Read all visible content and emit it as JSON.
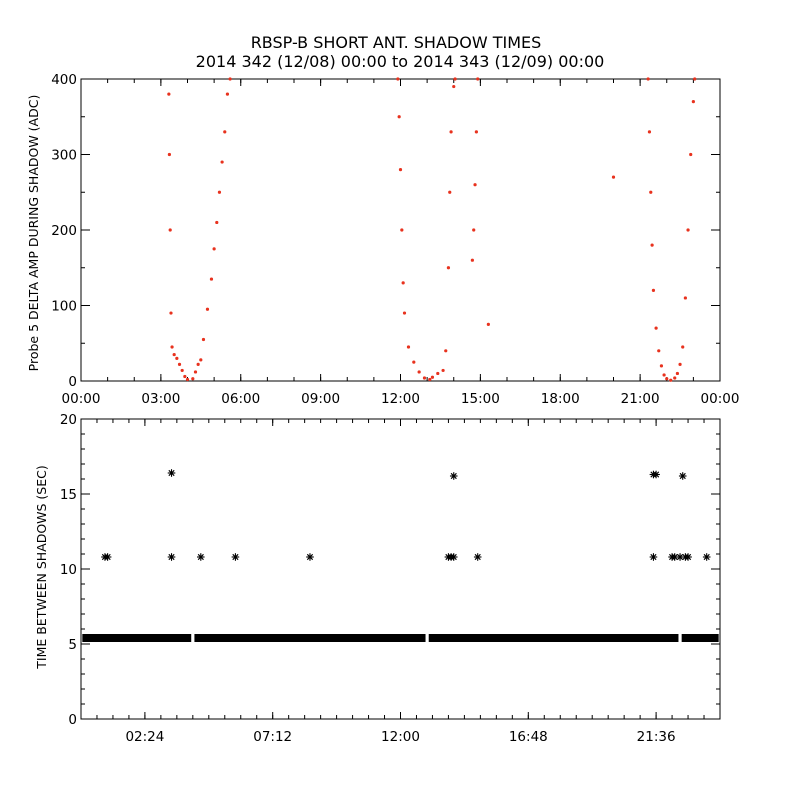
{
  "header": {
    "title": "RBSP-B SHORT ANT. SHADOW TIMES",
    "subtitle": "2014 342 (12/08) 00:00 to 2014 343 (12/09) 00:00"
  },
  "chart_data": [
    {
      "type": "scatter",
      "title": "RBSP-B SHORT ANT. SHADOW TIMES",
      "subtitle": "2014 342 (12/08) 00:00 to 2014 343 (12/09) 00:00",
      "xlabel": "",
      "ylabel": "Probe 5 DELTA AMP DURING SHADOW (ADC)",
      "x_unit": "hours",
      "xlim": [
        0,
        24
      ],
      "ylim": [
        0,
        400
      ],
      "x_ticks": [
        0,
        3,
        6,
        9,
        12,
        15,
        18,
        21,
        24
      ],
      "x_tick_labels": [
        "00:00",
        "03:00",
        "06:00",
        "09:00",
        "12:00",
        "15:00",
        "18:00",
        "21:00",
        "00:00"
      ],
      "y_ticks": [
        0,
        100,
        200,
        300,
        400
      ],
      "y_tick_labels": [
        "0",
        "100",
        "200",
        "300",
        "400"
      ],
      "grid": false,
      "marker_color": "#e8321e",
      "series": [
        {
          "x": [
            3.3,
            3.32,
            3.35,
            3.38,
            3.42,
            3.5,
            3.6,
            3.7,
            3.8,
            3.9,
            4.0,
            4.2,
            4.3,
            4.4,
            4.5,
            4.6,
            4.75,
            4.9,
            5.0,
            5.1,
            5.2,
            5.3,
            5.4,
            5.5,
            5.6,
            11.9,
            11.95,
            12.0,
            12.05,
            12.1,
            12.15,
            12.3,
            12.5,
            12.7,
            12.9,
            13.1,
            13.2,
            13.4,
            13.6,
            13.7,
            13.8,
            13.85,
            13.9,
            14.0,
            14.05,
            14.7,
            14.75,
            14.8,
            14.85,
            14.9,
            15.3,
            20.0,
            21.3,
            21.35,
            21.4,
            21.45,
            21.5,
            21.6,
            21.7,
            21.8,
            21.9,
            22.0,
            22.15,
            22.3,
            22.4,
            22.5,
            22.6,
            22.7,
            22.8,
            22.9,
            23.0,
            23.05
          ],
          "y": [
            380,
            300,
            200,
            90,
            45,
            35,
            30,
            22,
            14,
            6,
            2,
            3,
            12,
            22,
            28,
            55,
            95,
            135,
            175,
            210,
            250,
            290,
            330,
            380,
            400,
            400,
            350,
            280,
            200,
            130,
            90,
            45,
            25,
            12,
            4,
            2,
            5,
            10,
            14,
            40,
            150,
            250,
            330,
            390,
            400,
            160,
            200,
            260,
            330,
            400,
            75,
            270,
            400,
            330,
            250,
            180,
            120,
            70,
            40,
            20,
            8,
            3,
            1,
            4,
            10,
            22,
            45,
            110,
            200,
            300,
            370,
            400
          ]
        }
      ]
    },
    {
      "type": "scatter",
      "xlabel": "",
      "ylabel": "TIME BETWEEN SHADOWS (SEC)",
      "x_unit": "hours",
      "xlim": [
        0,
        24
      ],
      "ylim": [
        0,
        20
      ],
      "x_ticks": [
        2.4,
        7.2,
        12.0,
        16.8,
        21.6
      ],
      "x_tick_labels": [
        "02:24",
        "07:12",
        "12:00",
        "16:48",
        "21:36"
      ],
      "y_ticks": [
        0,
        5,
        10,
        15,
        20
      ],
      "y_tick_labels": [
        "0",
        "5",
        "10",
        "15",
        "20"
      ],
      "grid": false,
      "marker": "asterisk",
      "marker_color": "#000000",
      "baseline_value": 5.4,
      "baseline_range": [
        0.05,
        23.95
      ],
      "baseline_gaps": [
        4.2,
        13.0,
        22.5
      ],
      "series": [
        {
          "x": [
            0.9,
            1.0,
            3.4,
            3.4,
            4.5,
            5.8,
            8.6,
            13.8,
            13.9,
            14.0,
            14.0,
            14.9,
            21.5,
            21.5,
            21.6,
            22.2,
            22.3,
            22.5,
            22.6,
            22.7,
            22.8,
            23.5
          ],
          "y": [
            10.8,
            10.8,
            16.4,
            10.8,
            10.8,
            10.8,
            10.8,
            10.8,
            10.8,
            10.8,
            16.2,
            10.8,
            16.3,
            10.8,
            16.3,
            10.8,
            10.8,
            10.8,
            16.2,
            10.8,
            10.8,
            10.8
          ]
        }
      ]
    }
  ]
}
